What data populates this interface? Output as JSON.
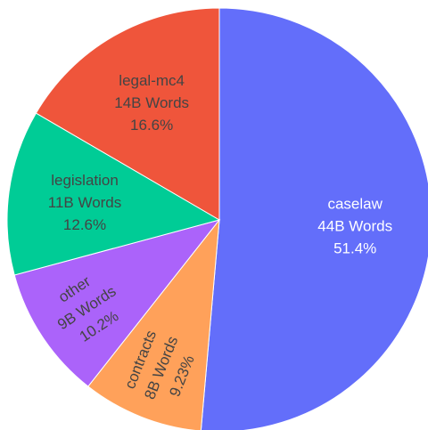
{
  "chart_data": {
    "type": "pie",
    "start_angle_deg": 0,
    "direction": "clockwise",
    "slices": [
      {
        "name": "caselaw",
        "amount": "44B Words",
        "percent_label": "51.4%",
        "value": 51.4,
        "color": "#636efa",
        "text_color": "#ffffff",
        "rotated_text": false
      },
      {
        "name": "contracts",
        "amount": "8B Words",
        "percent_label": "9.23%",
        "value": 9.23,
        "color": "#ffa15a",
        "text_color": "#444444",
        "rotated_text": true
      },
      {
        "name": "other",
        "amount": "9B Words",
        "percent_label": "10.2%",
        "value": 10.2,
        "color": "#ab63fa",
        "text_color": "#444444",
        "rotated_text": true
      },
      {
        "name": "legislation",
        "amount": "11B Words",
        "percent_label": "12.6%",
        "value": 12.6,
        "color": "#00cc96",
        "text_color": "#444444",
        "rotated_text": false
      },
      {
        "name": "legal-mc4",
        "amount": "14B Words",
        "percent_label": "16.6%",
        "value": 16.6,
        "color": "#ef553b",
        "text_color": "#444444",
        "rotated_text": false
      }
    ]
  }
}
